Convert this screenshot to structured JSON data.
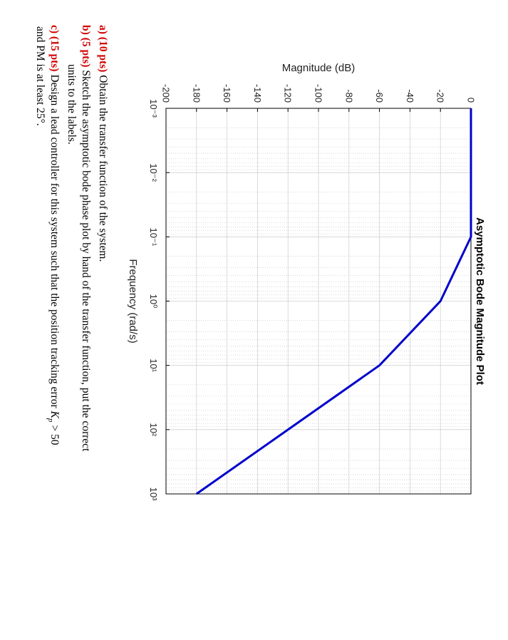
{
  "chart_data": {
    "type": "line",
    "title": "Asymptotic Bode Magnitude Plot",
    "x_label": "Frequency (rad/s)",
    "y_label": "Magnitude (dB)",
    "x": [
      0.001,
      0.1,
      1,
      10,
      1000
    ],
    "series": [
      {
        "name": "Magnitude",
        "color": "#0000cc",
        "values": [
          0,
          0,
          -20,
          -60,
          -180
        ]
      }
    ],
    "x_scale": "log",
    "xlim": [
      0.001,
      1000
    ],
    "xticks": [
      {
        "value": 0.001,
        "label": "10⁻³"
      },
      {
        "value": 0.01,
        "label": "10⁻²"
      },
      {
        "value": 0.1,
        "label": "10⁻¹"
      },
      {
        "value": 1,
        "label": "10⁰"
      },
      {
        "value": 10,
        "label": "10¹"
      },
      {
        "value": 100,
        "label": "10²"
      },
      {
        "value": 1000,
        "label": "10³"
      }
    ],
    "ylim": [
      -200,
      0
    ],
    "yticks": [
      0,
      -20,
      -40,
      -60,
      -80,
      -100,
      -120,
      -140,
      -160,
      -180,
      -200
    ],
    "grid": true
  },
  "questions": [
    {
      "letter": "a)",
      "points": "(10 pts)",
      "lines": [
        "Obtain the transfer function of the system."
      ]
    },
    {
      "letter": "b)",
      "points": "(5 pts)",
      "lines": [
        "Sketch the asymptotic bode phase plot by hand of the transfer function, put the correct",
        "units to the labels."
      ]
    },
    {
      "letter": "c)",
      "points": "(15 pts)",
      "lines": [
        "Design a lead controller for this system such that the position tracking error",
        "and PM is at least 25°."
      ],
      "symbol": "K",
      "symbol_sub": "p",
      "condition": "> 50"
    }
  ]
}
